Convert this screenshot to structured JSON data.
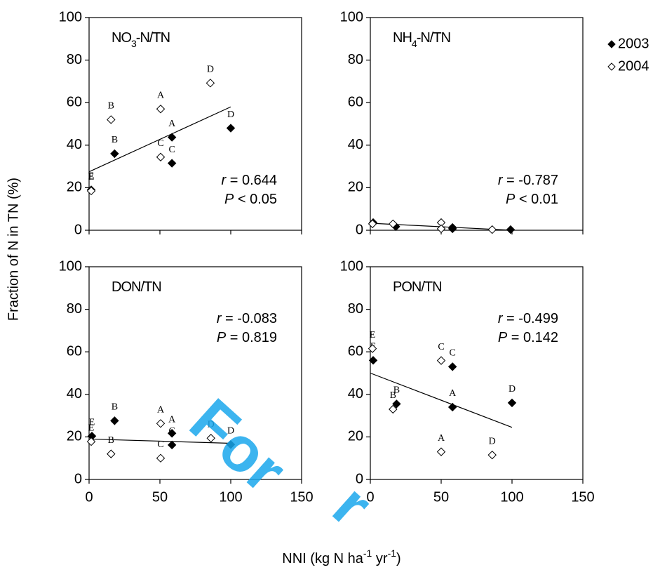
{
  "figure": {
    "ylabel": "Fraction of N in TN (%)",
    "xlabel_parts": [
      {
        "text": "NNI (kg N ha"
      },
      {
        "text": "-1",
        "sup": true
      },
      {
        "text": " yr"
      },
      {
        "text": "-1",
        "sup": true
      },
      {
        "text": ")"
      }
    ],
    "legend": {
      "corner": "upper-right",
      "entries": [
        {
          "name": "2003",
          "filled": true
        },
        {
          "name": "2004",
          "filled": false
        }
      ]
    },
    "watermark": [
      "For",
      "r"
    ]
  },
  "chart_data": [
    {
      "type": "scatter",
      "title": {
        "main": "NO",
        "sub": "3",
        "rest": "-N/TN"
      },
      "xlim": [
        0,
        150
      ],
      "ylim": [
        0,
        100
      ],
      "xticks": [
        0,
        50,
        100,
        150
      ],
      "yticks": [
        0,
        20,
        40,
        60,
        80,
        100
      ],
      "show_xtick_labels": false,
      "series": [
        {
          "filled": true,
          "color": "#000000",
          "x": [
            1.5,
            18,
            58.5,
            58.5,
            100
          ],
          "values": [
            19,
            36,
            43.7,
            31.5,
            48
          ],
          "point_labels": [
            "E",
            "B",
            "A",
            "C",
            "D"
          ]
        },
        {
          "filled": false,
          "color": "#000000",
          "x": [
            1.5,
            15.5,
            50.5,
            50.5,
            85.6
          ],
          "values": [
            18.5,
            52,
            57,
            34.4,
            69.2
          ],
          "point_labels": [
            "E",
            "B",
            "A",
            "C",
            "D"
          ]
        }
      ],
      "fit": {
        "x": [
          0,
          100
        ],
        "values": [
          27.5,
          58
        ]
      },
      "stats": [
        {
          "label": "r",
          "text": " = 0.644"
        },
        {
          "label": "P",
          "text": " < 0.05"
        }
      ],
      "stats_corner": "lower-right"
    },
    {
      "type": "scatter",
      "title": {
        "main": "NH",
        "sub": "4",
        "rest": "-N/TN"
      },
      "xlim": [
        0,
        150
      ],
      "ylim": [
        0,
        100
      ],
      "xticks": [
        0,
        50,
        100,
        150
      ],
      "yticks": [
        0,
        20,
        40,
        60,
        80,
        100
      ],
      "show_xtick_labels": false,
      "series": [
        {
          "filled": true,
          "color": "#000000",
          "x": [
            2,
            18,
            58,
            58,
            99
          ],
          "values": [
            3.6,
            1.7,
            1.3,
            0.7,
            0.3
          ]
        },
        {
          "filled": false,
          "color": "#000000",
          "x": [
            1.5,
            16,
            50,
            50,
            86
          ],
          "values": [
            3,
            3,
            3.6,
            0.7,
            0.3
          ]
        }
      ],
      "fit": {
        "x": [
          0,
          100
        ],
        "values": [
          3.3,
          0
        ]
      },
      "stats": [
        {
          "label": "r",
          "text": " = -0.787"
        },
        {
          "label": "P",
          "text": " < 0.01"
        }
      ],
      "stats_corner": "lower-right"
    },
    {
      "type": "scatter",
      "title": {
        "main": "DON/TN"
      },
      "xlim": [
        0,
        150
      ],
      "ylim": [
        0,
        100
      ],
      "xticks": [
        0,
        50,
        100,
        150
      ],
      "yticks": [
        0,
        20,
        40,
        60,
        80,
        100
      ],
      "show_xtick_labels": true,
      "series": [
        {
          "filled": true,
          "color": "#000000",
          "x": [
            2,
            18,
            58.5,
            58.5,
            100
          ],
          "values": [
            20.4,
            27.6,
            21.7,
            16.2,
            16.4
          ],
          "point_labels": [
            "E",
            "B",
            "A",
            "C",
            "D"
          ]
        },
        {
          "filled": false,
          "color": "#000000",
          "x": [
            1.5,
            15.5,
            50.5,
            50.5,
            86
          ],
          "values": [
            17.8,
            12,
            26.3,
            10,
            19.4
          ],
          "point_labels": [
            "E",
            "B",
            "A",
            "C",
            "D"
          ]
        }
      ],
      "fit": {
        "x": [
          0,
          100
        ],
        "values": [
          19,
          17
        ]
      },
      "stats": [
        {
          "label": "r",
          "text": " = -0.083"
        },
        {
          "label": "P",
          "text": " = 0.819"
        }
      ],
      "stats_corner": "upper-right"
    },
    {
      "type": "scatter",
      "title": {
        "main": "PON/TN"
      },
      "xlim": [
        0,
        150
      ],
      "ylim": [
        0,
        100
      ],
      "xticks": [
        0,
        50,
        100,
        150
      ],
      "yticks": [
        0,
        20,
        40,
        60,
        80,
        100
      ],
      "show_xtick_labels": true,
      "series": [
        {
          "filled": true,
          "color": "#000000",
          "x": [
            2,
            18.5,
            58,
            58,
            100
          ],
          "values": [
            56,
            35.5,
            53,
            34,
            36
          ],
          "point_labels": [
            "E",
            "B",
            "C",
            "A",
            "D"
          ]
        },
        {
          "filled": false,
          "color": "#000000",
          "x": [
            1.5,
            16,
            50,
            50,
            86
          ],
          "values": [
            61.5,
            33,
            55.9,
            13,
            11.5
          ],
          "point_labels": [
            "E",
            "B",
            "C",
            "A",
            "D"
          ]
        }
      ],
      "fit": {
        "x": [
          0,
          100
        ],
        "values": [
          50,
          24.5
        ]
      },
      "stats": [
        {
          "label": "r",
          "text": " = -0.499"
        },
        {
          "label": "P",
          "text": " = 0.142"
        }
      ],
      "stats_corner": "upper-right"
    }
  ]
}
